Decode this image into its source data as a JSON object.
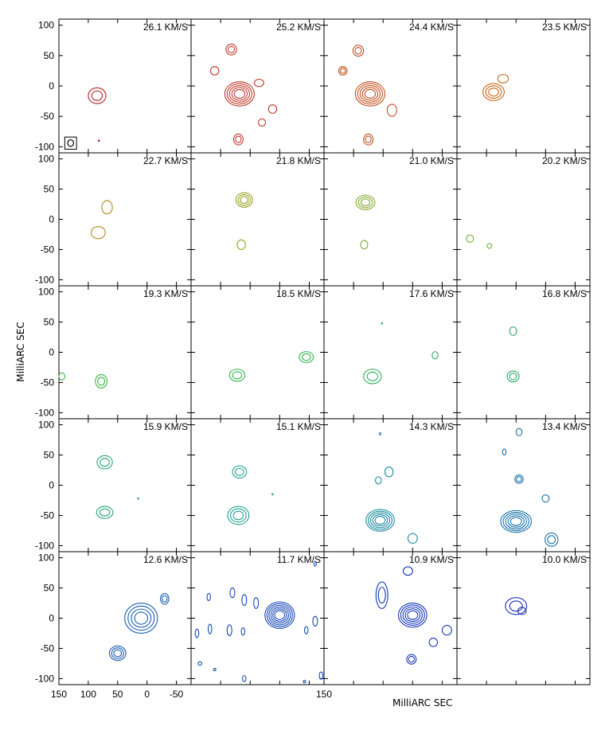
{
  "chart_data": {
    "type": "contour-channel-maps",
    "x_label": "MilliARC SEC",
    "y_label": "MilliARC SEC",
    "xlim": [
      150,
      -75
    ],
    "ylim": [
      -110,
      110
    ],
    "y_ticks": [
      100,
      50,
      0,
      -50,
      -100
    ],
    "x_ticks": [
      150,
      100,
      50,
      0,
      -50
    ],
    "beam": {
      "x": 130,
      "y": -94,
      "size_mas": 10
    },
    "panels": [
      {
        "label": "26.1 KM/S",
        "color": "#b22222",
        "contours": [
          {
            "x": 85,
            "y": -16,
            "rx": 15,
            "ry": 13,
            "levels": 2
          },
          {
            "x": 82,
            "y": -90,
            "rx": 1,
            "ry": 1,
            "levels": 1
          }
        ]
      },
      {
        "label": "25.2 KM/S",
        "color": "#c0392b",
        "contours": [
          {
            "x": 68,
            "y": -13,
            "rx": 25,
            "ry": 20,
            "levels": 5
          },
          {
            "x": 82,
            "y": 60,
            "rx": 9,
            "ry": 9,
            "levels": 2
          },
          {
            "x": 110,
            "y": 25,
            "rx": 7,
            "ry": 7,
            "levels": 1
          },
          {
            "x": 35,
            "y": 5,
            "rx": 8,
            "ry": 6,
            "levels": 1
          },
          {
            "x": 12,
            "y": -38,
            "rx": 7,
            "ry": 7,
            "levels": 1
          },
          {
            "x": 30,
            "y": -60,
            "rx": 6,
            "ry": 6,
            "levels": 1
          },
          {
            "x": 70,
            "y": -88,
            "rx": 8,
            "ry": 9,
            "levels": 2
          }
        ]
      },
      {
        "label": "24.4 KM/S",
        "color": "#c0501f",
        "contours": [
          {
            "x": 72,
            "y": -13,
            "rx": 25,
            "ry": 20,
            "levels": 5
          },
          {
            "x": 92,
            "y": 58,
            "rx": 9,
            "ry": 9,
            "levels": 2
          },
          {
            "x": 118,
            "y": 25,
            "rx": 7,
            "ry": 7,
            "levels": 2
          },
          {
            "x": 35,
            "y": -40,
            "rx": 8,
            "ry": 10,
            "levels": 1
          },
          {
            "x": 75,
            "y": -88,
            "rx": 8,
            "ry": 9,
            "levels": 2
          }
        ]
      },
      {
        "label": "23.5 KM/S",
        "color": "#c8651a",
        "contours": [
          {
            "x": 88,
            "y": -10,
            "rx": 18,
            "ry": 14,
            "levels": 3
          },
          {
            "x": 72,
            "y": 12,
            "rx": 9,
            "ry": 7,
            "levels": 1
          }
        ]
      },
      {
        "label": "22.7 KM/S",
        "color": "#b58a1e",
        "contours": [
          {
            "x": 68,
            "y": 20,
            "rx": 9,
            "ry": 11,
            "levels": 1
          },
          {
            "x": 83,
            "y": -22,
            "rx": 12,
            "ry": 10,
            "levels": 1
          }
        ]
      },
      {
        "label": "21.8 KM/S",
        "color": "#99a020",
        "contours": [
          {
            "x": 60,
            "y": 32,
            "rx": 14,
            "ry": 12,
            "levels": 3
          },
          {
            "x": 65,
            "y": -42,
            "rx": 7,
            "ry": 8,
            "levels": 1
          }
        ]
      },
      {
        "label": "21.0 KM/S",
        "color": "#80a82a",
        "contours": [
          {
            "x": 80,
            "y": 28,
            "rx": 16,
            "ry": 12,
            "levels": 3
          },
          {
            "x": 82,
            "y": -42,
            "rx": 6,
            "ry": 7,
            "levels": 1
          }
        ]
      },
      {
        "label": "20.2 KM/S",
        "color": "#6bb030",
        "contours": [
          {
            "x": 128,
            "y": -32,
            "rx": 6,
            "ry": 6,
            "levels": 1
          },
          {
            "x": 95,
            "y": -44,
            "rx": 4,
            "ry": 4,
            "levels": 1
          }
        ]
      },
      {
        "label": "19.3 KM/S",
        "color": "#3cb043",
        "contours": [
          {
            "x": 145,
            "y": -40,
            "rx": 5,
            "ry": 6,
            "levels": 1
          },
          {
            "x": 78,
            "y": -48,
            "rx": 10,
            "ry": 11,
            "levels": 2
          }
        ]
      },
      {
        "label": "18.5 KM/S",
        "color": "#33b04e",
        "contours": [
          {
            "x": 72,
            "y": -38,
            "rx": 13,
            "ry": 10,
            "levels": 2
          },
          {
            "x": -45,
            "y": -8,
            "rx": 12,
            "ry": 9,
            "levels": 2
          }
        ]
      },
      {
        "label": "17.6 KM/S",
        "color": "#2eac5a",
        "contours": [
          {
            "x": 68,
            "y": -40,
            "rx": 15,
            "ry": 12,
            "levels": 2
          },
          {
            "x": 52,
            "y": 48,
            "rx": 1,
            "ry": 1,
            "levels": 1
          },
          {
            "x": -38,
            "y": -5,
            "rx": 5,
            "ry": 6,
            "levels": 1
          }
        ]
      },
      {
        "label": "16.8 KM/S",
        "color": "#2aa865",
        "contours": [
          {
            "x": 55,
            "y": 35,
            "rx": 6,
            "ry": 7,
            "levels": 1
          },
          {
            "x": 55,
            "y": -40,
            "rx": 10,
            "ry": 9,
            "levels": 2
          }
        ]
      },
      {
        "label": "15.9 KM/S",
        "color": "#26a470",
        "contours": [
          {
            "x": 72,
            "y": 38,
            "rx": 13,
            "ry": 11,
            "levels": 2
          },
          {
            "x": 72,
            "y": -45,
            "rx": 14,
            "ry": 10,
            "levels": 2
          },
          {
            "x": 15,
            "y": -22,
            "rx": 1,
            "ry": 1,
            "levels": 1
          }
        ]
      },
      {
        "label": "15.1 KM/S",
        "color": "#22a090",
        "contours": [
          {
            "x": 68,
            "y": 22,
            "rx": 12,
            "ry": 10,
            "levels": 2
          },
          {
            "x": 70,
            "y": -50,
            "rx": 18,
            "ry": 15,
            "levels": 3
          },
          {
            "x": 12,
            "y": -15,
            "rx": 1,
            "ry": 1,
            "levels": 1
          }
        ]
      },
      {
        "label": "14.3 KM/S",
        "color": "#1e8aa0",
        "contours": [
          {
            "x": 55,
            "y": -58,
            "rx": 24,
            "ry": 18,
            "levels": 5
          },
          {
            "x": 40,
            "y": 22,
            "rx": 7,
            "ry": 8,
            "levels": 1
          },
          {
            "x": 58,
            "y": 8,
            "rx": 5,
            "ry": 6,
            "levels": 1
          },
          {
            "x": 55,
            "y": 85,
            "rx": 1,
            "ry": 2,
            "levels": 1
          },
          {
            "x": 0,
            "y": -88,
            "rx": 8,
            "ry": 8,
            "levels": 1
          }
        ]
      },
      {
        "label": "13.4 KM/S",
        "color": "#1a72a8",
        "contours": [
          {
            "x": 50,
            "y": -60,
            "rx": 26,
            "ry": 18,
            "levels": 5
          },
          {
            "x": 45,
            "y": 88,
            "rx": 5,
            "ry": 6,
            "levels": 1
          },
          {
            "x": 70,
            "y": 55,
            "rx": 3,
            "ry": 5,
            "levels": 1
          },
          {
            "x": 45,
            "y": 10,
            "rx": 7,
            "ry": 7,
            "levels": 2
          },
          {
            "x": 0,
            "y": -22,
            "rx": 6,
            "ry": 6,
            "levels": 1
          },
          {
            "x": -10,
            "y": -90,
            "rx": 11,
            "ry": 11,
            "levels": 2
          }
        ]
      },
      {
        "label": "12.6 KM/S",
        "color": "#1a5eb0",
        "contours": [
          {
            "x": 10,
            "y": 0,
            "rx": 28,
            "ry": 25,
            "levels": 4
          },
          {
            "x": -30,
            "y": 32,
            "rx": 7,
            "ry": 9,
            "levels": 2
          },
          {
            "x": 50,
            "y": -58,
            "rx": 14,
            "ry": 12,
            "levels": 3
          }
        ]
      },
      {
        "label": "11.7 KM/S",
        "color": "#184ab5",
        "contours": [
          {
            "x": 0,
            "y": 5,
            "rx": 25,
            "ry": 22,
            "levels": 6
          },
          {
            "x": -60,
            "y": 90,
            "rx": 2,
            "ry": 4,
            "levels": 1
          },
          {
            "x": 80,
            "y": 42,
            "rx": 4,
            "ry": 8,
            "levels": 1
          },
          {
            "x": 60,
            "y": 30,
            "rx": 4,
            "ry": 9,
            "levels": 1
          },
          {
            "x": 40,
            "y": 25,
            "rx": 4,
            "ry": 9,
            "levels": 1
          },
          {
            "x": 120,
            "y": 35,
            "rx": 3,
            "ry": 6,
            "levels": 1
          },
          {
            "x": 140,
            "y": -25,
            "rx": 3,
            "ry": 7,
            "levels": 1
          },
          {
            "x": 118,
            "y": -18,
            "rx": 3,
            "ry": 8,
            "levels": 1
          },
          {
            "x": 85,
            "y": -20,
            "rx": 4,
            "ry": 9,
            "levels": 1
          },
          {
            "x": 62,
            "y": -22,
            "rx": 3,
            "ry": 6,
            "levels": 1
          },
          {
            "x": -45,
            "y": -20,
            "rx": 3,
            "ry": 6,
            "levels": 1
          },
          {
            "x": -60,
            "y": -5,
            "rx": 4,
            "ry": 8,
            "levels": 1
          },
          {
            "x": 135,
            "y": -75,
            "rx": 3,
            "ry": 3,
            "levels": 1
          },
          {
            "x": 110,
            "y": -85,
            "rx": 2,
            "ry": 2,
            "levels": 1
          },
          {
            "x": 60,
            "y": -100,
            "rx": 3,
            "ry": 5,
            "levels": 1
          },
          {
            "x": -42,
            "y": -105,
            "rx": 2,
            "ry": 2,
            "levels": 1
          },
          {
            "x": -70,
            "y": -95,
            "rx": 3,
            "ry": 6,
            "levels": 1
          }
        ]
      },
      {
        "label": "10.9 KM/S",
        "color": "#1838b8",
        "contours": [
          {
            "x": 0,
            "y": 5,
            "rx": 24,
            "ry": 20,
            "levels": 5
          },
          {
            "x": 52,
            "y": 38,
            "rx": 10,
            "ry": 22,
            "levels": 2
          },
          {
            "x": 8,
            "y": 78,
            "rx": 8,
            "ry": 7,
            "levels": 1
          },
          {
            "x": -35,
            "y": -40,
            "rx": 7,
            "ry": 7,
            "levels": 1
          },
          {
            "x": -58,
            "y": -20,
            "rx": 8,
            "ry": 8,
            "levels": 1
          },
          {
            "x": 2,
            "y": -68,
            "rx": 8,
            "ry": 8,
            "levels": 2
          }
        ]
      },
      {
        "label": "10.0 KM/S",
        "color": "#1a2fb8",
        "contours": [
          {
            "x": 50,
            "y": 20,
            "rx": 18,
            "ry": 14,
            "levels": 2
          },
          {
            "x": 40,
            "y": 12,
            "rx": 7,
            "ry": 6,
            "levels": 1
          }
        ]
      }
    ]
  }
}
